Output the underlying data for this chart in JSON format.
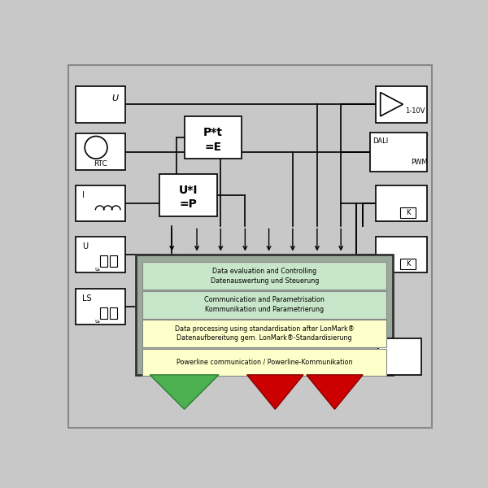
{
  "bg_color": "#c8c8c8",
  "box_fc": "#ffffff",
  "box_ec": "#000000",
  "green_layer": "#c8e6c9",
  "yellow_layer": "#ffffcc",
  "green_tri": "#4caf50",
  "red_tri": "#cc0000",
  "main_box_fc": "#a0a8a0",
  "layers": [
    {
      "text": "Data evaluation and Controlling\nDatenauswertung und Steuerung",
      "color": "#c8e6c9"
    },
    {
      "text": "Communication and Parametrisation\nKommunikation und Parametrierung",
      "color": "#c8e6c9"
    },
    {
      "text": "Data processing using standardisation after LonMark®\nDatenaufbereitung gem. LonMark®-Standardisierung",
      "color": "#ffffcc"
    },
    {
      "text": "Powerline communication / Powerline-Kommunikation",
      "color": "#ffffcc"
    }
  ]
}
